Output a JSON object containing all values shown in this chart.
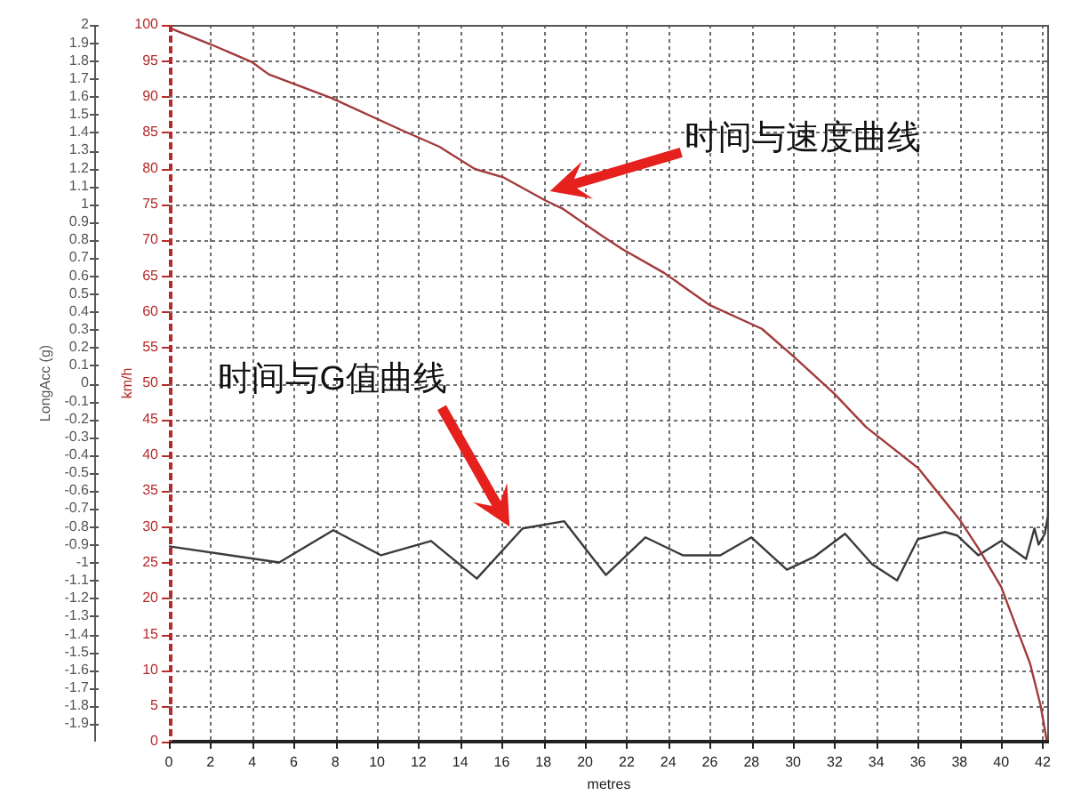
{
  "chart_data": {
    "type": "line",
    "xlabel": "metres",
    "ylabel": "km/h",
    "y2label": "LongAcc (g)",
    "xlim": [
      0,
      42.3
    ],
    "xticks": [
      0,
      2,
      4,
      6,
      8,
      10,
      12,
      14,
      16,
      18,
      20,
      22,
      24,
      26,
      28,
      30,
      32,
      34,
      36,
      38,
      40,
      42
    ],
    "ylim": [
      0,
      100
    ],
    "yticks": [
      0,
      5,
      10,
      15,
      20,
      25,
      30,
      35,
      40,
      45,
      50,
      55,
      60,
      65,
      70,
      75,
      80,
      85,
      90,
      95,
      100
    ],
    "y2lim": [
      -2,
      2
    ],
    "y2ticks": [
      -1.9,
      -1.8,
      -1.7,
      -1.6,
      -1.5,
      -1.4,
      -1.3,
      -1.2,
      -1.1,
      -1,
      -0.9,
      -0.8,
      -0.7,
      -0.6,
      -0.5,
      -0.4,
      -0.3,
      -0.2,
      -0.1,
      0,
      0.1,
      0.2,
      0.3,
      0.4,
      0.5,
      0.6,
      0.7,
      0.8,
      0.9,
      1,
      1.1,
      1.2,
      1.3,
      1.4,
      1.5,
      1.6,
      1.7,
      1.8,
      1.9,
      2
    ],
    "grid": true,
    "series": [
      {
        "color": "#a23a3a",
        "x": [
          0,
          2,
          4,
          4.8,
          7.8,
          11.2,
          13,
          14.7,
          16.1,
          18.1,
          18.9,
          20.9,
          21.8,
          23.8,
          26,
          28.5,
          30,
          32,
          33.5,
          36,
          37,
          38,
          38.9,
          40,
          40.7,
          41.4,
          41.9,
          42.2
        ],
        "values": [
          99.6,
          97.3,
          94.8,
          93.1,
          89.8,
          85.3,
          83,
          79.9,
          78.7,
          75.5,
          74.4,
          70.4,
          68.7,
          65.4,
          60.9,
          57.6,
          53.8,
          48.5,
          43.9,
          38.2,
          34.6,
          31,
          27,
          21.6,
          16.2,
          10.8,
          5,
          0
        ]
      },
      {
        "color": "#3a3a3a",
        "axis": "y2",
        "x": [
          0,
          5.3,
          7.9,
          10.2,
          12.6,
          14.8,
          17,
          19,
          21,
          22.9,
          24.7,
          26.5,
          28,
          29.7,
          31,
          32.5,
          33.8,
          35,
          36,
          37.3,
          37.9,
          38.9,
          40,
          41.2,
          41.6,
          41.8,
          42.1,
          42.25,
          42.3
        ],
        "values": [
          -0.91,
          -1,
          -0.82,
          -0.96,
          -0.88,
          -1.09,
          -0.81,
          -0.77,
          -1.07,
          -0.86,
          -0.96,
          -0.96,
          -0.86,
          -1.04,
          -0.97,
          -0.84,
          -1.01,
          -1.1,
          -0.87,
          -0.83,
          -0.85,
          -0.96,
          -0.88,
          -0.98,
          -0.81,
          -0.9,
          -0.84,
          -0.74,
          -0.24
        ]
      }
    ],
    "annotations": [
      "时间与速度曲线",
      "时间与G值曲线"
    ]
  }
}
